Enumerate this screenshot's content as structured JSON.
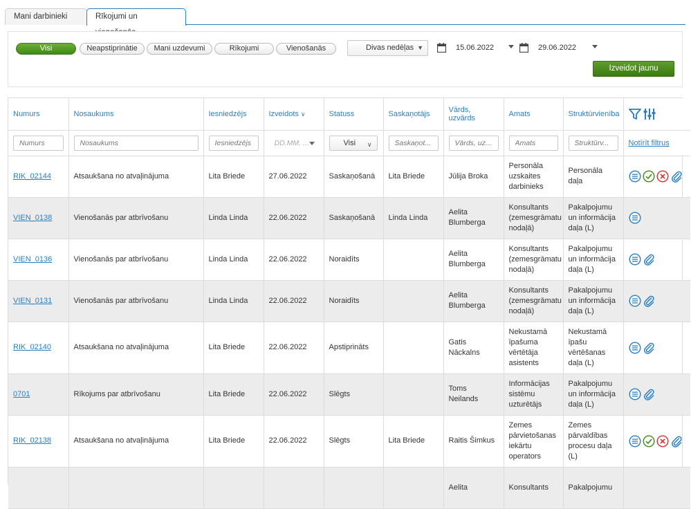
{
  "tabs": [
    {
      "label": "Mani darbinieki"
    },
    {
      "label": "Rīkojumi un vienošanās"
    }
  ],
  "filters": {
    "pills": [
      "Visi",
      "Neapstiprinātie",
      "Mani uzdevumi",
      "Rīkojumi",
      "Vienošanās"
    ],
    "period": "Divas nedēļas",
    "date_from": "15.06.2022",
    "date_to": "29.06.2022",
    "create_label": "Izveidot jaunu"
  },
  "table": {
    "columns": [
      "Numurs",
      "Nosaukums",
      "Iesniedzējs",
      "Izveidots",
      "Statuss",
      "Saskaņotājs",
      "Vārds, uzvārds",
      "Amats",
      "Struktūrvienība"
    ],
    "placeholders": {
      "numurs": "Numurs",
      "nosaukums": "Nosaukums",
      "iesniedzejs": "Iesniedzējs",
      "izveidots": "DD.MM. ...",
      "statuss": "Visi",
      "saskanotajs": "Saskaņot...",
      "vards": "Vārds, uz...",
      "amats": "Amats",
      "struktur": "Struktūrv..."
    },
    "clear_filters": "Notīrīt filtrus",
    "rows": [
      {
        "nr": "RIK_02144",
        "title": "Atsaukšana no atvaļinājuma",
        "sub": "Lita Briede",
        "date": "27.06.2022",
        "status": "Saskaņošanā",
        "approver": "Lita Briede",
        "name": "Jūlija Broka",
        "pos": "Personāla uzskaites darbinieks",
        "unit": "Personāla daļa",
        "actions": [
          "details",
          "approve",
          "reject",
          "attach"
        ]
      },
      {
        "nr": "VIEN_0138",
        "title": "Vienošanās par atbrīvošanu",
        "sub": "Linda Linda",
        "date": "22.06.2022",
        "status": "Saskaņošanā",
        "approver": "Linda Linda",
        "name": "Aelita Blumberga",
        "pos": "Konsultants (zemesgrāmatu nodaļā)",
        "unit": "Pakalpojumu un informācija daļa (L)",
        "actions": [
          "details"
        ]
      },
      {
        "nr": "VIEN_0136",
        "title": "Vienošanās par atbrīvošanu",
        "sub": "Linda Linda",
        "date": "22.06.2022",
        "status": "Noraidīts",
        "approver": "",
        "name": "Aelita Blumberga",
        "pos": "Konsultants (zemesgrāmatu nodaļā)",
        "unit": "Pakalpojumu un informācija daļa (L)",
        "actions": [
          "details",
          "attach"
        ]
      },
      {
        "nr": "VIEN_0131",
        "title": "Vienošanās par atbrīvošanu",
        "sub": "Linda Linda",
        "date": "22.06.2022",
        "status": "Noraidīts",
        "approver": "",
        "name": "Aelita Blumberga",
        "pos": "Konsultants (zemesgrāmatu nodaļā)",
        "unit": "Pakalpojumu un informācija daļa (L)",
        "actions": [
          "details",
          "attach"
        ]
      },
      {
        "nr": "RIK_02140",
        "title": "Atsaukšana no atvaļinājuma",
        "sub": "Lita Briede",
        "date": "22.06.2022",
        "status": "Apstiprināts",
        "approver": "",
        "name": "Gatis Nāckalns",
        "pos": "Nekustamā īpašuma vērtētāja asistents",
        "unit": "Nekustamā īpašu vērtēšanas daļa (L)",
        "actions": [
          "details",
          "attach"
        ]
      },
      {
        "nr": "0701",
        "title": "Rīkojums par atbrīvošanu",
        "sub": "Lita Briede",
        "date": "22.06.2022",
        "status": "Slēgts",
        "approver": "",
        "name": "Toms Neilands",
        "pos": "Informācijas sistēmu uzturētājs",
        "unit": "Pakalpojumu un informācija daļa (L)",
        "actions": [
          "details",
          "attach"
        ]
      },
      {
        "nr": "RIK_02138",
        "title": "Atsaukšana no atvaļinājuma",
        "sub": "Lita Briede",
        "date": "22.06.2022",
        "status": "Slēgts",
        "approver": "Lita Briede",
        "name": "Raitis Šimkus",
        "pos": "Zemes pārvietošanas iekārtu operators",
        "unit": "Zemes pārvaldības procesu daļa (L)",
        "actions": [
          "details",
          "approve",
          "reject",
          "attach"
        ]
      },
      {
        "nr": "",
        "title": "",
        "sub": "",
        "date": "",
        "status": "",
        "approver": "",
        "name": "Aelita",
        "pos": "Konsultants",
        "unit": "Pakalpojumu",
        "actions": []
      }
    ]
  },
  "colors": {
    "accent": "#2a7fc1",
    "green": "#3d8a12",
    "reject": "#d9302c"
  }
}
